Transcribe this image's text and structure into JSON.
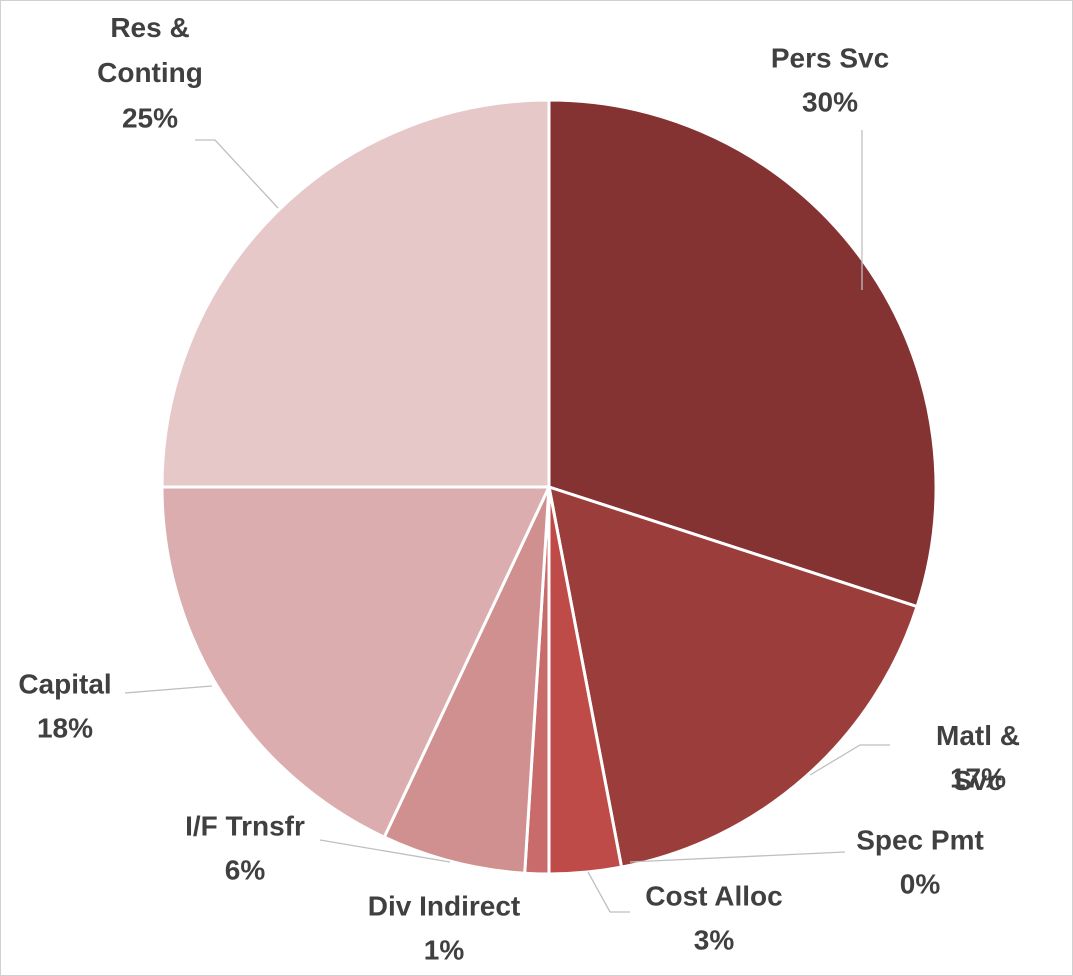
{
  "chart_data": {
    "type": "pie",
    "categories": [
      "Pers Svc",
      "Matl & Svc",
      "Spec Pmt",
      "Cost Alloc",
      "Div Indirect",
      "I/F Trnsfr",
      "Capital",
      "Res & Conting"
    ],
    "values": [
      30,
      17,
      0,
      3,
      1,
      6,
      18,
      25
    ],
    "value_labels": [
      "30%",
      "17%",
      "0%",
      "3%",
      "1%",
      "6%",
      "18%",
      "25%"
    ],
    "colors": [
      "#843232",
      "#9b3d3b",
      "#b04644",
      "#bf4b48",
      "#c86b6a",
      "#d09090",
      "#dbadae",
      "#e6c8c9"
    ]
  }
}
